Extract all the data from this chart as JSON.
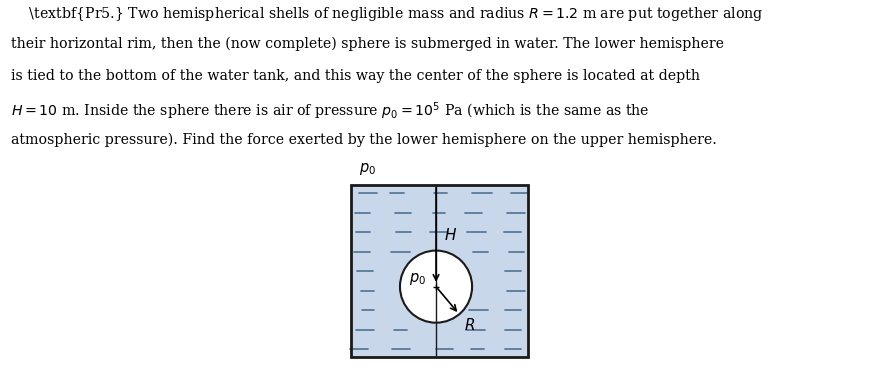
{
  "background_color": "#ffffff",
  "water_color": "#c8d8ea",
  "tank_line_color": "#1a1a1a",
  "dash_color": "#5a7a9a",
  "sphere_fill": "#ffffff",
  "sphere_line_color": "#1a1a1a",
  "arrow_color": "#1a1a1a",
  "text_lines": [
    "    \\textbf{Pr5.} Two hemispherical shells of negligible mass and radius $R = 1.2$ m are put together along",
    "their horizontal rim, then the (now complete) sphere is submerged in water. The lower hemisphere",
    "is tied to the bottom of the water tank, and this way the center of the sphere is located at depth",
    "$H = 10$ m. Inside the sphere there is air of pressure $p_0 = 10^5$ Pa (which is the same as the",
    "atmospheric pressure). Find the force exerted by the lower hemisphere on the upper hemisphere."
  ],
  "fig_width": 8.88,
  "fig_height": 3.71,
  "dpi": 100
}
